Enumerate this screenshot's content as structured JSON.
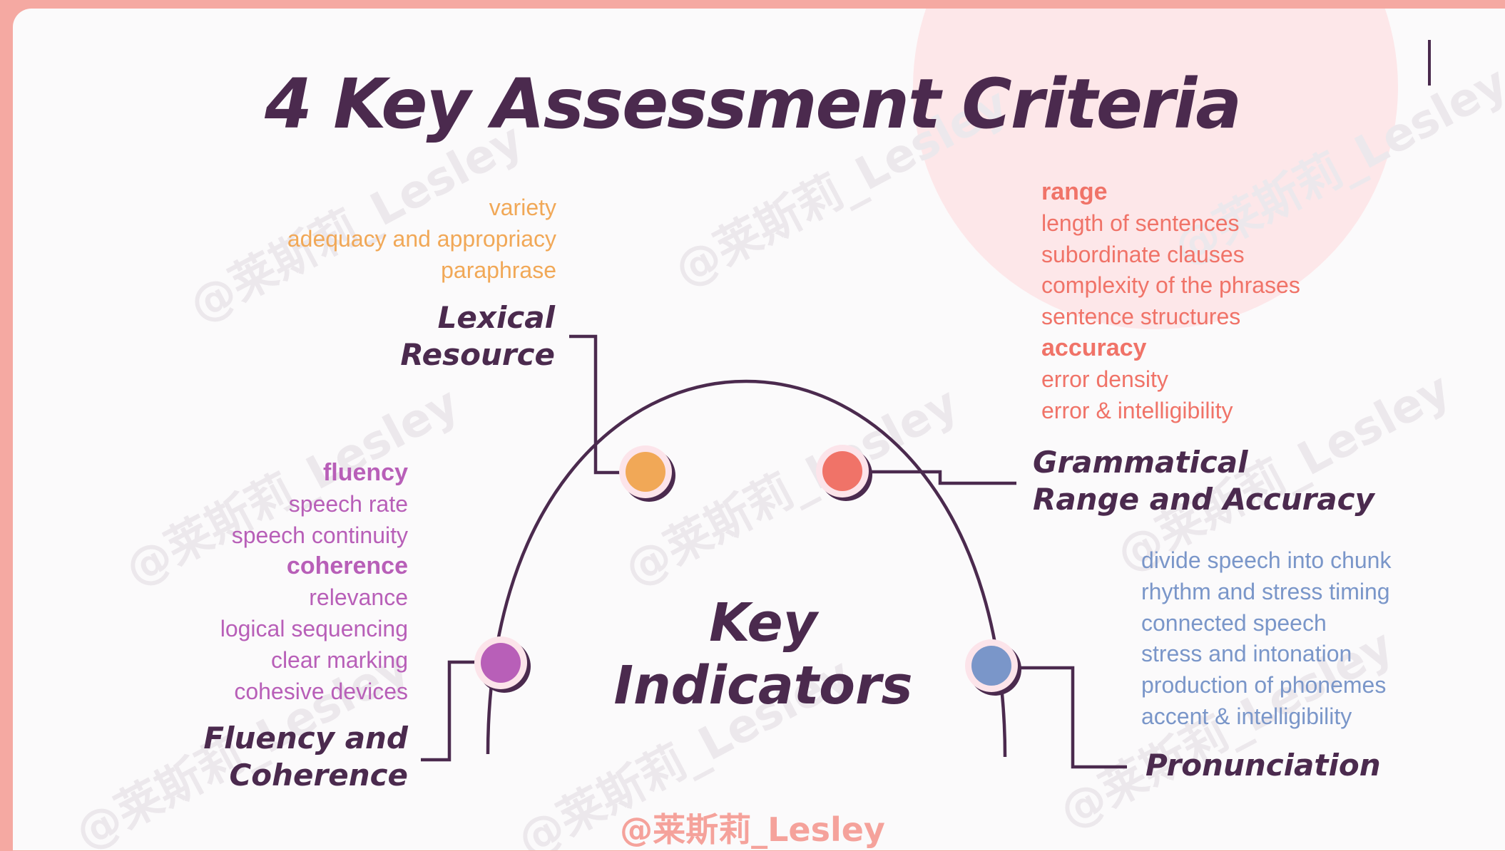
{
  "title": "4 Key Assessment Criteria",
  "center": {
    "line1": "Key",
    "line2": "Indicators"
  },
  "criteria": {
    "lexical": {
      "label_line1": "Lexical",
      "label_line2": "Resource",
      "color": "#f1a857",
      "items": [
        "variety",
        "adequacy and appropriacy",
        "paraphrase"
      ]
    },
    "grammar": {
      "label_line1": "Grammatical",
      "label_line2": "Range and Accuracy",
      "color": "#f07368",
      "items": [
        {
          "text": "range",
          "heading": true
        },
        {
          "text": "length of sentences"
        },
        {
          "text": "subordinate clauses"
        },
        {
          "text": "complexity of the phrases"
        },
        {
          "text": "sentence structures"
        },
        {
          "text": "accuracy",
          "heading": true
        },
        {
          "text": "error density"
        },
        {
          "text": "error & intelligibility"
        }
      ]
    },
    "fluency": {
      "label_line1": "Fluency and",
      "label_line2": "Coherence",
      "color": "#b85fb8",
      "items": [
        {
          "text": "fluency",
          "heading": true
        },
        {
          "text": "speech rate"
        },
        {
          "text": "speech continuity"
        },
        {
          "text": "coherence",
          "heading": true
        },
        {
          "text": "relevance"
        },
        {
          "text": "logical sequencing"
        },
        {
          "text": "clear marking"
        },
        {
          "text": "cohesive devices"
        }
      ]
    },
    "pronunciation": {
      "label_line1": "Pronunciation",
      "color": "#7a96c9",
      "items": [
        "divide speech into chunk",
        "rhythm and stress timing",
        "connected speech",
        "stress and intonation",
        "production of phonemes",
        "accent & intelligibility"
      ]
    }
  },
  "watermark": "@莱斯莉_Lesley",
  "line_color": "#4b2a4e"
}
